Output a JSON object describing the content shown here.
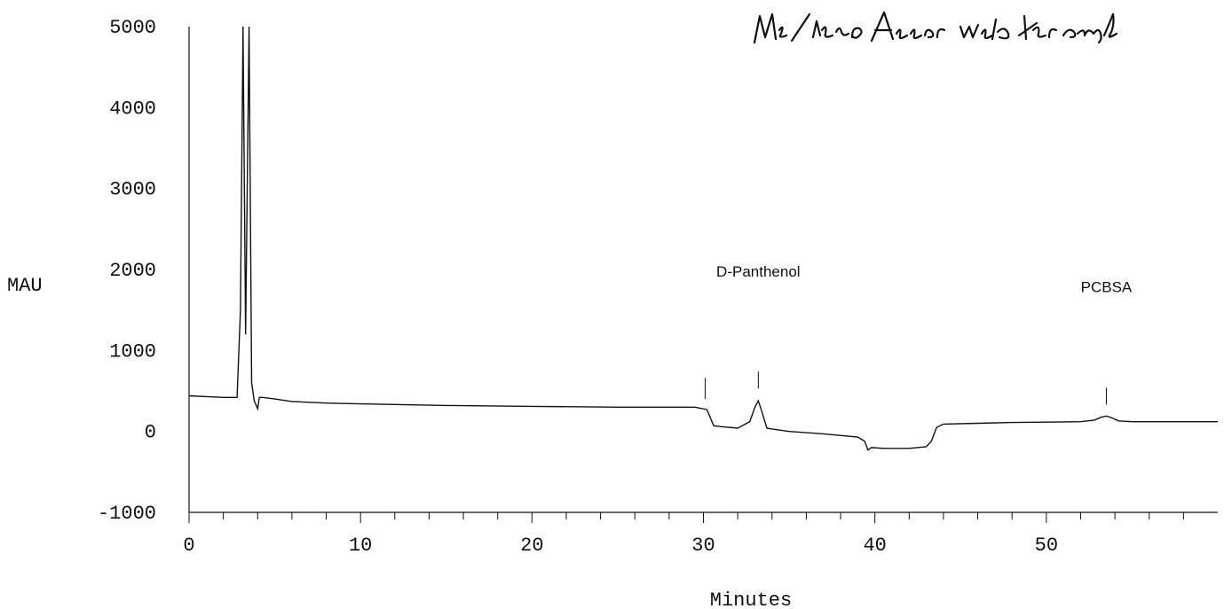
{
  "chart_data": {
    "type": "line",
    "ylabel": "MAU",
    "xlabel": "Minutes",
    "xlim": [
      0,
      60
    ],
    "ylim": [
      -1000,
      5000
    ],
    "x_ticks": [
      0,
      10,
      20,
      30,
      40,
      50
    ],
    "y_ticks": [
      5000,
      4000,
      3000,
      2000,
      1000,
      0,
      -1000
    ],
    "x_tick_labels": [
      "0",
      "10",
      "20",
      "30",
      "40",
      "50"
    ],
    "y_tick_labels": [
      "5000",
      "4000",
      "3000",
      "2000",
      "1000",
      "0",
      "-1000"
    ],
    "grid": false,
    "series": [
      {
        "x": [
          0,
          1,
          2,
          2.8,
          3.0,
          3.15,
          3.3,
          3.5,
          3.65,
          3.8,
          4.0,
          4.1,
          4.3,
          5,
          6,
          8,
          10,
          15,
          20,
          25,
          29.5,
          30.2,
          30.6,
          31,
          32,
          32.7,
          33.0,
          33.2,
          33.4,
          33.7,
          34,
          35,
          37,
          39,
          39.4,
          39.6,
          39.8,
          40.5,
          42,
          43,
          43.3,
          43.6,
          44,
          46,
          48,
          50,
          52,
          52.8,
          53.2,
          53.5,
          53.8,
          54.2,
          55,
          58,
          60
        ],
        "y": [
          440,
          430,
          420,
          420,
          1500,
          5000,
          1200,
          5000,
          600,
          380,
          280,
          420,
          420,
          400,
          370,
          350,
          340,
          320,
          310,
          300,
          300,
          270,
          70,
          60,
          40,
          120,
          300,
          380,
          250,
          40,
          30,
          0,
          -30,
          -70,
          -120,
          -230,
          -200,
          -210,
          -210,
          -190,
          -120,
          50,
          90,
          100,
          110,
          115,
          120,
          140,
          175,
          190,
          170,
          130,
          120,
          120,
          120
        ]
      }
    ],
    "annotations": [
      {
        "text": "D-Panthenol",
        "x": 33.2,
        "y": 380
      },
      {
        "text": "PCBSA",
        "x": 53.5,
        "y": 190
      }
    ],
    "marker_lines": [
      {
        "x": 30.1,
        "y_start": 400,
        "y_end": 660
      },
      {
        "x": 33.2,
        "y_start": 530,
        "y_end": 740
      },
      {
        "x": 53.5,
        "y_start": 330,
        "y_end": 540
      }
    ],
    "handwritten_note": "MS/MSD Assoc w/ the sample"
  }
}
